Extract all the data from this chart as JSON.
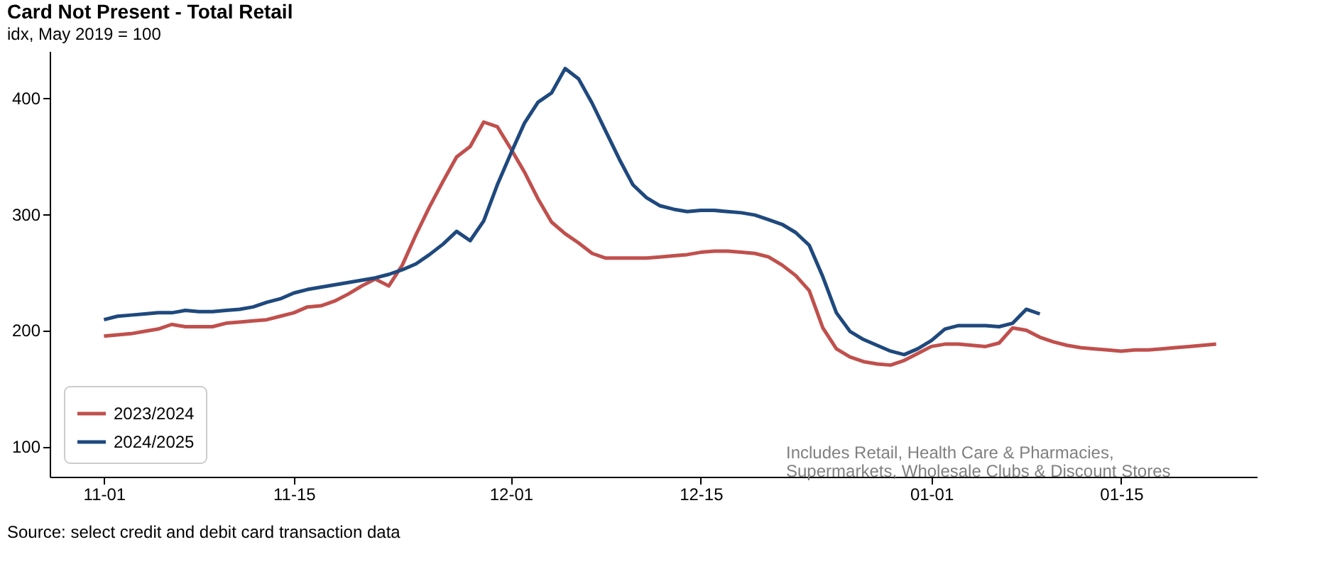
{
  "chart_data": {
    "type": "line",
    "title": "Card Not Present - Total Retail",
    "subtitle": "idx, May 2019 = 100",
    "x": [
      "2024-11-01",
      "2024-11-02",
      "2024-11-03",
      "2024-11-04",
      "2024-11-05",
      "2024-11-06",
      "2024-11-07",
      "2024-11-08",
      "2024-11-09",
      "2024-11-10",
      "2024-11-11",
      "2024-11-12",
      "2024-11-13",
      "2024-11-14",
      "2024-11-15",
      "2024-11-16",
      "2024-11-17",
      "2024-11-18",
      "2024-11-19",
      "2024-11-20",
      "2024-11-21",
      "2024-11-22",
      "2024-11-23",
      "2024-11-24",
      "2024-11-25",
      "2024-11-26",
      "2024-11-27",
      "2024-11-28",
      "2024-11-29",
      "2024-11-30",
      "2024-12-01",
      "2024-12-02",
      "2024-12-03",
      "2024-12-04",
      "2024-12-05",
      "2024-12-06",
      "2024-12-07",
      "2024-12-08",
      "2024-12-09",
      "2024-12-10",
      "2024-12-11",
      "2024-12-12",
      "2024-12-13",
      "2024-12-14",
      "2024-12-15",
      "2024-12-16",
      "2024-12-17",
      "2024-12-18",
      "2024-12-19",
      "2024-12-20",
      "2024-12-21",
      "2024-12-22",
      "2024-12-23",
      "2024-12-24",
      "2024-12-25",
      "2024-12-26",
      "2024-12-27",
      "2024-12-28",
      "2024-12-29",
      "2024-12-30",
      "2024-12-31",
      "2025-01-01",
      "2025-01-02",
      "2025-01-03",
      "2025-01-04",
      "2025-01-05",
      "2025-01-06",
      "2025-01-07",
      "2025-01-08",
      "2025-01-09",
      "2025-01-10",
      "2025-01-11",
      "2025-01-12",
      "2025-01-13",
      "2025-01-14",
      "2025-01-15",
      "2025-01-16",
      "2025-01-17",
      "2025-01-18",
      "2025-01-19",
      "2025-01-20",
      "2025-01-21",
      "2025-01-22"
    ],
    "series": [
      {
        "name": "2023/2024",
        "color": "#c0504d",
        "values": [
          195,
          196,
          197,
          199,
          201,
          205,
          203,
          203,
          203,
          206,
          207,
          208,
          209,
          212,
          215,
          220,
          221,
          225,
          231,
          238,
          244,
          238,
          256,
          282,
          306,
          328,
          349,
          358,
          379,
          375,
          356,
          336,
          313,
          293,
          283,
          275,
          266,
          262,
          262,
          262,
          262,
          263,
          264,
          265,
          267,
          268,
          268,
          267,
          266,
          263,
          256,
          247,
          234,
          202,
          184,
          177,
          173,
          171,
          170,
          174,
          180,
          186,
          188,
          188,
          187,
          186,
          189,
          202,
          200,
          194,
          190,
          187,
          185,
          184,
          183,
          182,
          183,
          183,
          184,
          185,
          186,
          187,
          188
        ]
      },
      {
        "name": "2024/2025",
        "color": "#1f497d",
        "values": [
          209,
          212,
          213,
          214,
          215,
          215,
          217,
          216,
          216,
          217,
          218,
          220,
          224,
          227,
          232,
          235,
          237,
          239,
          241,
          243,
          245,
          248,
          252,
          257,
          265,
          274,
          285,
          277,
          294,
          325,
          352,
          378,
          396,
          404,
          425,
          416,
          395,
          371,
          347,
          325,
          314,
          307,
          304,
          302,
          303,
          303,
          302,
          301,
          299,
          295,
          291,
          284,
          273,
          246,
          215,
          199,
          192,
          187,
          182,
          179,
          184,
          191,
          201,
          204,
          204,
          204,
          203,
          206,
          218,
          214,
          null,
          null,
          null,
          null,
          null,
          null,
          null,
          null,
          null,
          null,
          null,
          null,
          null
        ]
      }
    ],
    "xlim": [
      "2024-10-28",
      "2025-01-25"
    ],
    "xticks": [
      {
        "value": "2024-11-01",
        "label": "11-01"
      },
      {
        "value": "2024-11-15",
        "label": "11-15"
      },
      {
        "value": "2024-12-01",
        "label": "12-01"
      },
      {
        "value": "2024-12-15",
        "label": "12-15"
      },
      {
        "value": "2025-01-01",
        "label": "01-01"
      },
      {
        "value": "2025-01-15",
        "label": "01-15"
      }
    ],
    "ylim": [
      74,
      440
    ],
    "yticks": [
      100,
      200,
      300,
      400
    ],
    "grid": false,
    "legend": "bottom left",
    "marker": "none",
    "line_style": "solid",
    "annotations": [
      "Includes Retail, Health Care & Pharmacies,\nSupermarkets, Wholesale Clubs & Discount Stores",
      "Source: select credit and debit card transaction data"
    ]
  }
}
